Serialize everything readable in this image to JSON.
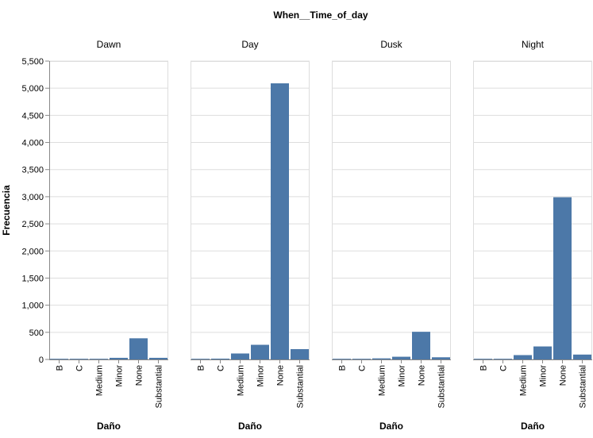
{
  "chart_data": {
    "type": "bar",
    "title": "When__Time_of_day",
    "xlabel": "Daño",
    "ylabel": "Frecuencia",
    "categories": [
      "B",
      "C",
      "Medium",
      "Minor",
      "None",
      "Substantial"
    ],
    "ylim": [
      0,
      5500
    ],
    "yticks": [
      0,
      500,
      1000,
      1500,
      2000,
      2500,
      3000,
      3500,
      4000,
      4500,
      5000,
      5500
    ],
    "ytick_labels": [
      "0",
      "500",
      "1,000",
      "1,500",
      "2,000",
      "2,500",
      "3,000",
      "3,500",
      "4,000",
      "4,500",
      "5,000",
      "5,500"
    ],
    "grid": true,
    "bar_color": "#4c78a8",
    "facets": [
      {
        "name": "Dawn",
        "values": [
          2,
          2,
          10,
          30,
          390,
          30
        ]
      },
      {
        "name": "Day",
        "values": [
          5,
          15,
          110,
          270,
          5090,
          190
        ]
      },
      {
        "name": "Dusk",
        "values": [
          2,
          3,
          20,
          50,
          510,
          40
        ]
      },
      {
        "name": "Night",
        "values": [
          3,
          5,
          80,
          240,
          2990,
          90
        ]
      }
    ]
  }
}
